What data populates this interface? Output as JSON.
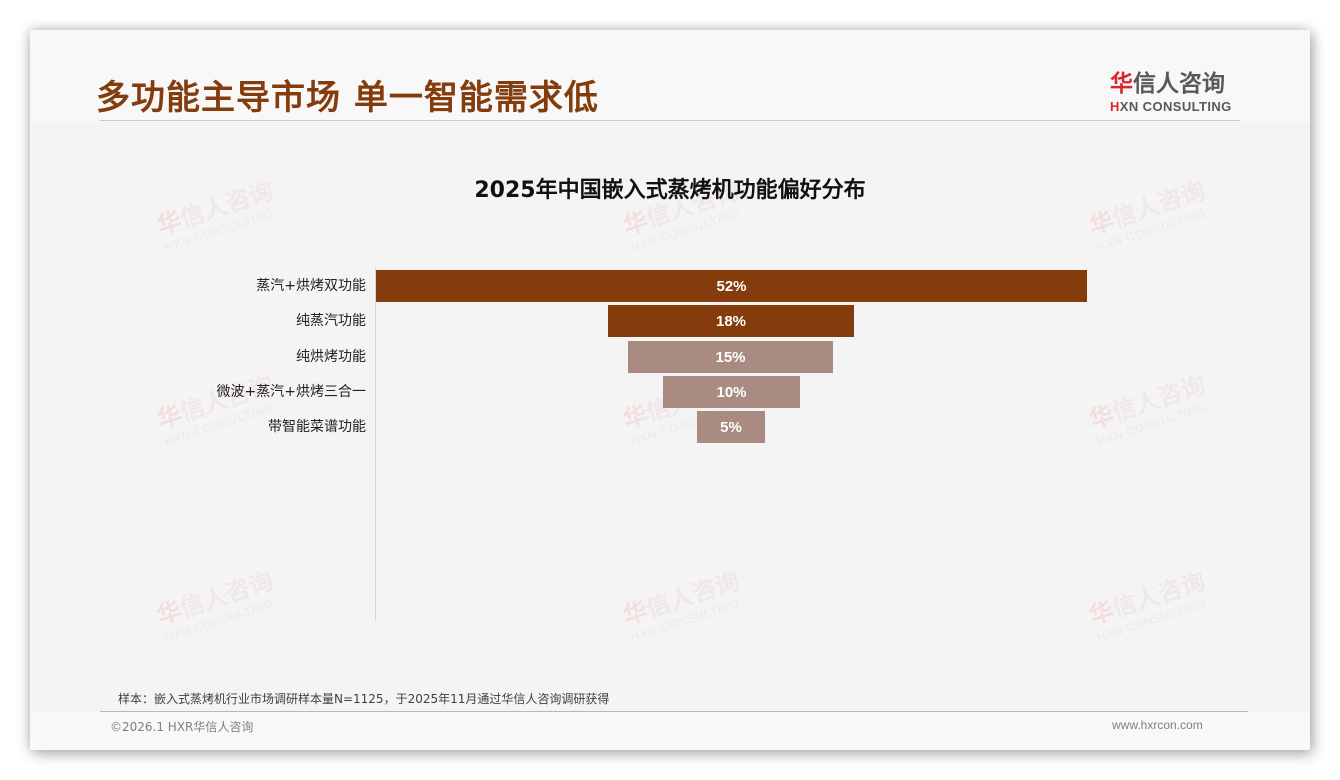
{
  "page": {
    "title": "多功能主导市场 单一智能需求低",
    "logo": {
      "cn_first": "华",
      "cn_rest": "信人咨询",
      "en_first": "H",
      "en_rest": "XN CONSULTING"
    },
    "watermark": {
      "cn_first": "华",
      "cn_rest": "信人咨询",
      "en": "HXN CONSULTING"
    },
    "source_note": "样本：嵌入式蒸烤机行业市场调研样本量N=1125，于2025年11月通过华信人咨询调研获得",
    "copyright": "©2026.1 HXR华信人咨询",
    "website": "www.hxrcon.com"
  },
  "colors": {
    "title": "#843c0c",
    "bar_dark": "#843c0c",
    "bar_light": "#a98b82",
    "logo_red": "#d9262c"
  },
  "chart_data": {
    "type": "bar",
    "subtype": "funnel (centered horizontal bars)",
    "title": "2025年中国嵌入式蒸烤机功能偏好分布",
    "categories": [
      "蒸汽+烘烤双功能",
      "纯蒸汽功能",
      "纯烘烤功能",
      "微波+蒸汽+烘烤三合一",
      "带智能菜谱功能"
    ],
    "values": [
      52,
      18,
      15,
      10,
      5
    ],
    "labels": [
      "52%",
      "18%",
      "15%",
      "10%",
      "5%"
    ],
    "unit": "%",
    "bar_colors": [
      "#843c0c",
      "#843c0c",
      "#a98b82",
      "#a98b82",
      "#a98b82"
    ],
    "xlabel": "",
    "ylabel": "",
    "grid": false,
    "legend": null
  }
}
